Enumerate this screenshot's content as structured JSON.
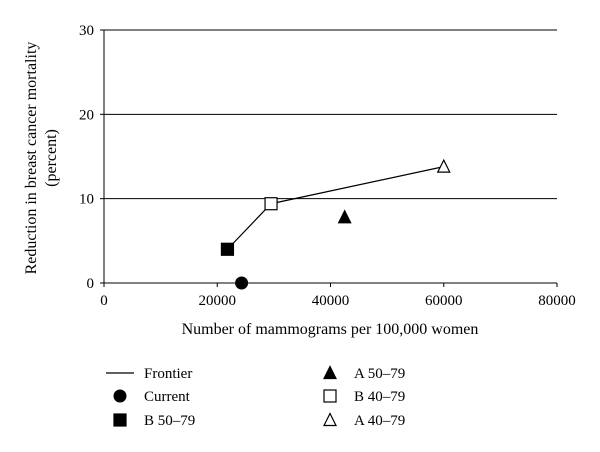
{
  "chart_data": {
    "type": "scatter",
    "xlabel": "Number of mammograms per 100,000 women",
    "ylabel_lines": [
      "Reduction in breast cancer mortality",
      "(percent)"
    ],
    "xlim": [
      0,
      80000
    ],
    "ylim": [
      0,
      30
    ],
    "x_ticks": [
      0,
      20000,
      40000,
      60000,
      80000
    ],
    "x_tick_labels": [
      "0",
      "20000",
      "40000",
      "60000",
      "80000"
    ],
    "y_ticks": [
      0,
      10,
      20,
      30
    ],
    "y_tick_labels": [
      "0",
      "10",
      "20",
      "30"
    ],
    "grid": "horizontal",
    "legend_position": "bottom",
    "frontier": {
      "name": "Frontier",
      "points": [
        [
          21800,
          4.0
        ],
        [
          29500,
          9.4
        ],
        [
          60000,
          13.8
        ]
      ]
    },
    "series": [
      {
        "name": "Current",
        "marker": "circle-filled",
        "x": 24300,
        "y": 0.0
      },
      {
        "name": "B 50–79",
        "marker": "square-filled",
        "x": 21800,
        "y": 4.0
      },
      {
        "name": "A 50–79",
        "marker": "triangle-filled",
        "x": 42500,
        "y": 7.8
      },
      {
        "name": "B 40–79",
        "marker": "square-open",
        "x": 29500,
        "y": 9.4
      },
      {
        "name": "A 40–79",
        "marker": "triangle-open",
        "x": 60000,
        "y": 13.8
      }
    ],
    "legend": [
      {
        "label": "Frontier",
        "marker": "line"
      },
      {
        "label": "Current",
        "marker": "circle-filled"
      },
      {
        "label": "B 50–79",
        "marker": "square-filled"
      },
      {
        "label": "A 50–79",
        "marker": "triangle-filled"
      },
      {
        "label": "B 40–79",
        "marker": "square-open"
      },
      {
        "label": "A 40–79",
        "marker": "triangle-open"
      }
    ]
  }
}
